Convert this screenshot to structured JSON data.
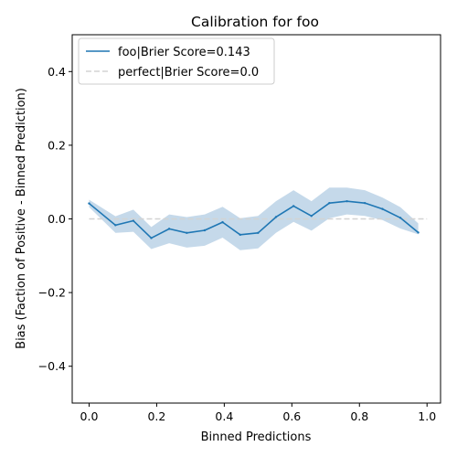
{
  "chart_data": {
    "type": "line",
    "title": "Calibration for foo",
    "xlabel": "Binned Predictions",
    "ylabel": "Bias (Faction of Positive - Binned Prediction)",
    "xlim": [
      -0.05,
      1.04
    ],
    "ylim": [
      -0.5,
      0.5
    ],
    "xticks": [
      0.0,
      0.2,
      0.4,
      0.6,
      0.8,
      1.0
    ],
    "xtick_labels": [
      "0.0",
      "0.2",
      "0.4",
      "0.6",
      "0.8",
      "1.0"
    ],
    "yticks": [
      -0.4,
      -0.2,
      0.0,
      0.2,
      0.4
    ],
    "ytick_labels": [
      "−0.4",
      "−0.2",
      "0.0",
      "0.2",
      "0.4"
    ],
    "grid": false,
    "legend_position": "top-left",
    "series": [
      {
        "name": "foo|Brier Score=0.143",
        "color": "#1f77b4",
        "band_color": "#c5d9ea",
        "style": "solid",
        "x": [
          0.0,
          0.078,
          0.131,
          0.184,
          0.237,
          0.289,
          0.342,
          0.395,
          0.447,
          0.5,
          0.553,
          0.605,
          0.658,
          0.711,
          0.763,
          0.816,
          0.868,
          0.921,
          0.974
        ],
        "values": [
          0.042,
          -0.017,
          -0.005,
          -0.052,
          -0.027,
          -0.038,
          -0.031,
          -0.009,
          -0.043,
          -0.038,
          0.005,
          0.035,
          0.008,
          0.043,
          0.048,
          0.043,
          0.027,
          0.003,
          -0.037
        ],
        "upper": [
          0.052,
          0.007,
          0.025,
          -0.022,
          0.012,
          0.005,
          0.012,
          0.033,
          0.002,
          0.008,
          0.048,
          0.078,
          0.048,
          0.085,
          0.085,
          0.078,
          0.058,
          0.032,
          -0.012
        ],
        "lower": [
          0.032,
          -0.038,
          -0.035,
          -0.082,
          -0.066,
          -0.078,
          -0.073,
          -0.051,
          -0.085,
          -0.08,
          -0.038,
          -0.008,
          -0.032,
          0.002,
          0.012,
          0.008,
          -0.003,
          -0.026,
          -0.042
        ]
      },
      {
        "name": "perfect|Brier Score=0.0",
        "color": "#d3d3d3",
        "style": "dashed",
        "x": [
          0.0,
          1.0
        ],
        "values": [
          0.0,
          0.0
        ]
      }
    ]
  }
}
